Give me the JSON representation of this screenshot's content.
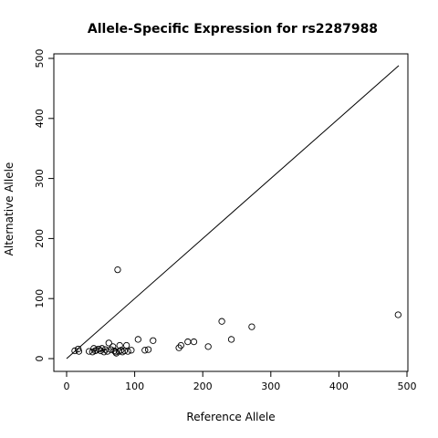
{
  "chart_data": {
    "type": "scatter",
    "title": "Allele-Specific Expression for rs2287988",
    "xlabel": "Reference Allele",
    "ylabel": "Alternative Allele",
    "xlim": [
      0,
      500
    ],
    "ylim": [
      0,
      500
    ],
    "xticks": [
      "0",
      "100",
      "200",
      "300",
      "400",
      "500"
    ],
    "yticks": [
      "0",
      "100",
      "200",
      "300",
      "400",
      "500"
    ],
    "grid": false,
    "reference_line": [
      [
        0,
        0
      ],
      [
        488,
        488
      ]
    ],
    "points": [
      [
        12,
        13
      ],
      [
        17,
        16
      ],
      [
        18,
        12
      ],
      [
        33,
        12
      ],
      [
        38,
        11
      ],
      [
        40,
        17
      ],
      [
        42,
        13
      ],
      [
        44,
        14
      ],
      [
        47,
        16
      ],
      [
        50,
        13
      ],
      [
        52,
        17
      ],
      [
        55,
        11
      ],
      [
        57,
        15
      ],
      [
        60,
        12
      ],
      [
        62,
        26
      ],
      [
        65,
        15
      ],
      [
        68,
        20
      ],
      [
        70,
        13
      ],
      [
        72,
        11
      ],
      [
        73,
        9
      ],
      [
        75,
        148
      ],
      [
        77,
        12
      ],
      [
        78,
        22
      ],
      [
        80,
        14
      ],
      [
        82,
        11
      ],
      [
        85,
        13
      ],
      [
        88,
        22
      ],
      [
        90,
        12
      ],
      [
        95,
        14
      ],
      [
        105,
        32
      ],
      [
        115,
        14
      ],
      [
        120,
        15
      ],
      [
        127,
        30
      ],
      [
        165,
        18
      ],
      [
        168,
        22
      ],
      [
        178,
        28
      ],
      [
        187,
        28
      ],
      [
        208,
        20
      ],
      [
        228,
        62
      ],
      [
        242,
        32
      ],
      [
        272,
        53
      ],
      [
        487,
        73
      ]
    ]
  }
}
